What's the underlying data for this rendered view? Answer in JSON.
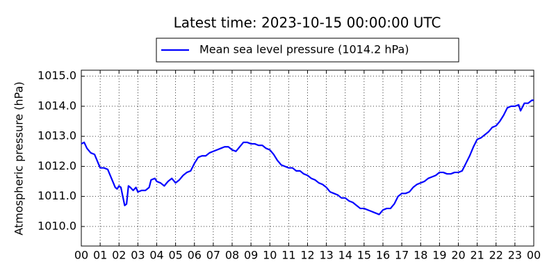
{
  "chart_data": {
    "type": "line",
    "title": "Latest time: 2023-10-15 00:00:00 UTC",
    "y_label": "Atmospheric pressure (hPa)",
    "series": [
      {
        "name": "Mean sea level pressure (1014.2 hPa)",
        "color": "#0000ff",
        "x": [
          0,
          0.15,
          0.3,
          0.5,
          0.7,
          0.9,
          1.0,
          1.2,
          1.4,
          1.6,
          1.8,
          1.9,
          2.0,
          2.1,
          2.2,
          2.3,
          2.4,
          2.5,
          2.6,
          2.75,
          2.9,
          3.0,
          3.2,
          3.4,
          3.6,
          3.7,
          3.9,
          4.0,
          4.2,
          4.4,
          4.6,
          4.8,
          5.0,
          5.2,
          5.4,
          5.6,
          5.8,
          6.0,
          6.2,
          6.4,
          6.6,
          6.8,
          7.0,
          7.2,
          7.4,
          7.6,
          7.8,
          8.0,
          8.2,
          8.4,
          8.6,
          8.8,
          9.0,
          9.2,
          9.4,
          9.6,
          9.8,
          10.0,
          10.2,
          10.4,
          10.6,
          10.8,
          11.0,
          11.2,
          11.4,
          11.6,
          11.8,
          12.0,
          12.2,
          12.4,
          12.6,
          12.8,
          13.0,
          13.2,
          13.4,
          13.6,
          13.8,
          14.0,
          14.2,
          14.4,
          14.6,
          14.8,
          15.0,
          15.2,
          15.4,
          15.6,
          15.8,
          16.0,
          16.2,
          16.4,
          16.6,
          16.8,
          17.0,
          17.2,
          17.4,
          17.6,
          17.8,
          18.0,
          18.2,
          18.4,
          18.6,
          18.8,
          19.0,
          19.2,
          19.4,
          19.6,
          19.8,
          20.0,
          20.2,
          20.4,
          20.6,
          20.8,
          21.0,
          21.2,
          21.4,
          21.6,
          21.8,
          22.0,
          22.2,
          22.4,
          22.6,
          22.8,
          23.0,
          23.2,
          23.3,
          23.5,
          23.7,
          23.9,
          24.0
        ],
        "values": [
          1012.75,
          1012.8,
          1012.6,
          1012.45,
          1012.4,
          1012.1,
          1011.95,
          1011.95,
          1011.9,
          1011.6,
          1011.3,
          1011.25,
          1011.35,
          1011.3,
          1011.0,
          1010.7,
          1010.75,
          1011.35,
          1011.3,
          1011.2,
          1011.3,
          1011.15,
          1011.2,
          1011.2,
          1011.3,
          1011.55,
          1011.6,
          1011.5,
          1011.45,
          1011.35,
          1011.5,
          1011.6,
          1011.45,
          1011.55,
          1011.7,
          1011.8,
          1011.85,
          1012.1,
          1012.3,
          1012.35,
          1012.35,
          1012.45,
          1012.5,
          1012.55,
          1012.6,
          1012.65,
          1012.65,
          1012.55,
          1012.5,
          1012.65,
          1012.8,
          1012.8,
          1012.75,
          1012.75,
          1012.7,
          1012.7,
          1012.6,
          1012.55,
          1012.4,
          1012.2,
          1012.05,
          1012.0,
          1011.95,
          1011.95,
          1011.85,
          1011.85,
          1011.75,
          1011.7,
          1011.6,
          1011.55,
          1011.45,
          1011.4,
          1011.3,
          1011.15,
          1011.1,
          1011.05,
          1010.95,
          1010.95,
          1010.85,
          1010.8,
          1010.7,
          1010.6,
          1010.6,
          1010.55,
          1010.5,
          1010.45,
          1010.4,
          1010.55,
          1010.6,
          1010.6,
          1010.75,
          1011.0,
          1011.1,
          1011.1,
          1011.15,
          1011.3,
          1011.4,
          1011.45,
          1011.5,
          1011.6,
          1011.65,
          1011.7,
          1011.8,
          1011.8,
          1011.75,
          1011.75,
          1011.8,
          1011.8,
          1011.85,
          1012.1,
          1012.35,
          1012.65,
          1012.9,
          1012.95,
          1013.05,
          1013.15,
          1013.3,
          1013.35,
          1013.5,
          1013.7,
          1013.95,
          1014.0,
          1014.0,
          1014.05,
          1013.85,
          1014.1,
          1014.1,
          1014.2,
          1014.2
        ]
      }
    ],
    "xlim": [
      0,
      24
    ],
    "xticks": [
      {
        "value": 0,
        "label": "00"
      },
      {
        "value": 1,
        "label": "01"
      },
      {
        "value": 2,
        "label": "02"
      },
      {
        "value": 3,
        "label": "03"
      },
      {
        "value": 4,
        "label": "04"
      },
      {
        "value": 5,
        "label": "05"
      },
      {
        "value": 6,
        "label": "06"
      },
      {
        "value": 7,
        "label": "07"
      },
      {
        "value": 8,
        "label": "08"
      },
      {
        "value": 9,
        "label": "09"
      },
      {
        "value": 10,
        "label": "10"
      },
      {
        "value": 11,
        "label": "11"
      },
      {
        "value": 12,
        "label": "12"
      },
      {
        "value": 13,
        "label": "13"
      },
      {
        "value": 14,
        "label": "14"
      },
      {
        "value": 15,
        "label": "15"
      },
      {
        "value": 16,
        "label": "16"
      },
      {
        "value": 17,
        "label": "17"
      },
      {
        "value": 18,
        "label": "18"
      },
      {
        "value": 19,
        "label": "19"
      },
      {
        "value": 20,
        "label": "20"
      },
      {
        "value": 21,
        "label": "21"
      },
      {
        "value": 22,
        "label": "22"
      },
      {
        "value": 23,
        "label": "23"
      },
      {
        "value": 24,
        "label": "00"
      }
    ],
    "ylim": [
      1009.35,
      1015.2
    ],
    "yticks": [
      {
        "value": 1010,
        "label": "1010.0"
      },
      {
        "value": 1011,
        "label": "1011.0"
      },
      {
        "value": 1012,
        "label": "1012.0"
      },
      {
        "value": 1013,
        "label": "1013.0"
      },
      {
        "value": 1014,
        "label": "1014.0"
      },
      {
        "value": 1015,
        "label": "1015.0"
      }
    ],
    "grid": true,
    "legend": "top"
  }
}
